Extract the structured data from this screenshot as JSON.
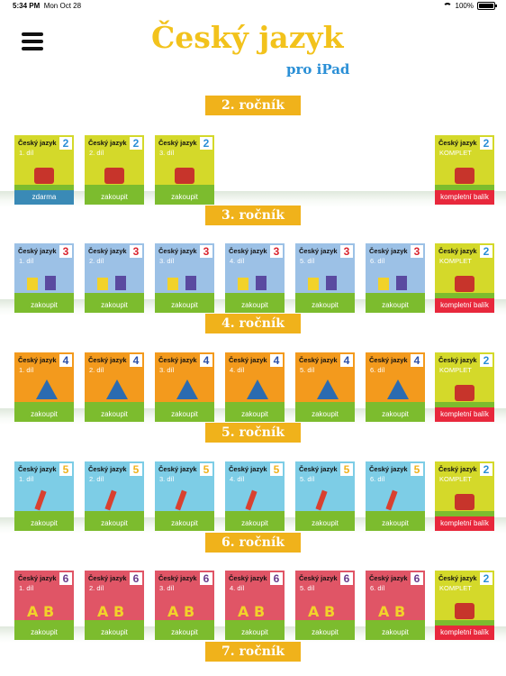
{
  "status": {
    "time": "5:34 PM",
    "date": "Mon Oct 28",
    "battery": "100%"
  },
  "logo": {
    "title": "Český jazyk",
    "subtitle": "pro iPad"
  },
  "colors": {
    "gold": "#f0b21b",
    "green": "#7cbc2e",
    "red": "#e8283c",
    "blue": "#3a8ab6",
    "g2": "#d4d92a",
    "g3": "#9cc1e6",
    "g4": "#f39a1d",
    "g5": "#7dcde6",
    "g6": "#e05566"
  },
  "card_title": "Český jazyk",
  "komplet": {
    "grade": "2",
    "part": "KOMPLET",
    "button": "kompletní balík"
  },
  "grades": [
    {
      "label": "2. ročník",
      "num": "2",
      "cards": [
        {
          "part": "1. díl",
          "button": "zdarma"
        },
        {
          "part": "2. díl",
          "button": "zakoupit"
        },
        {
          "part": "3. díl",
          "button": "zakoupit"
        }
      ]
    },
    {
      "label": "3. ročník",
      "num": "3",
      "cards": [
        {
          "part": "1. díl",
          "button": "zakoupit"
        },
        {
          "part": "2. díl",
          "button": "zakoupit"
        },
        {
          "part": "3. díl",
          "button": "zakoupit"
        },
        {
          "part": "4. díl",
          "button": "zakoupit"
        },
        {
          "part": "5. díl",
          "button": "zakoupit"
        },
        {
          "part": "6. díl",
          "button": "zakoupit"
        }
      ]
    },
    {
      "label": "4. ročník",
      "num": "4",
      "cards": [
        {
          "part": "1. díl",
          "button": "zakoupit"
        },
        {
          "part": "2. díl",
          "button": "zakoupit"
        },
        {
          "part": "3. díl",
          "button": "zakoupit"
        },
        {
          "part": "4. díl",
          "button": "zakoupit"
        },
        {
          "part": "5. díl",
          "button": "zakoupit"
        },
        {
          "part": "6. díl",
          "button": "zakoupit"
        }
      ]
    },
    {
      "label": "5. ročník",
      "num": "5",
      "cards": [
        {
          "part": "1. díl",
          "button": "zakoupit"
        },
        {
          "part": "2. díl",
          "button": "zakoupit"
        },
        {
          "part": "3. díl",
          "button": "zakoupit"
        },
        {
          "part": "4. díl",
          "button": "zakoupit"
        },
        {
          "part": "5. díl",
          "button": "zakoupit"
        },
        {
          "part": "6. díl",
          "button": "zakoupit"
        }
      ]
    },
    {
      "label": "6. ročník",
      "num": "6",
      "cards": [
        {
          "part": "1. díl",
          "button": "zakoupit"
        },
        {
          "part": "2. díl",
          "button": "zakoupit"
        },
        {
          "part": "3. díl",
          "button": "zakoupit"
        },
        {
          "part": "4. díl",
          "button": "zakoupit"
        },
        {
          "part": "5. díl",
          "button": "zakoupit"
        },
        {
          "part": "6. díl",
          "button": "zakoupit"
        }
      ]
    },
    {
      "label": "7. ročník",
      "num": "7",
      "cards": []
    }
  ]
}
